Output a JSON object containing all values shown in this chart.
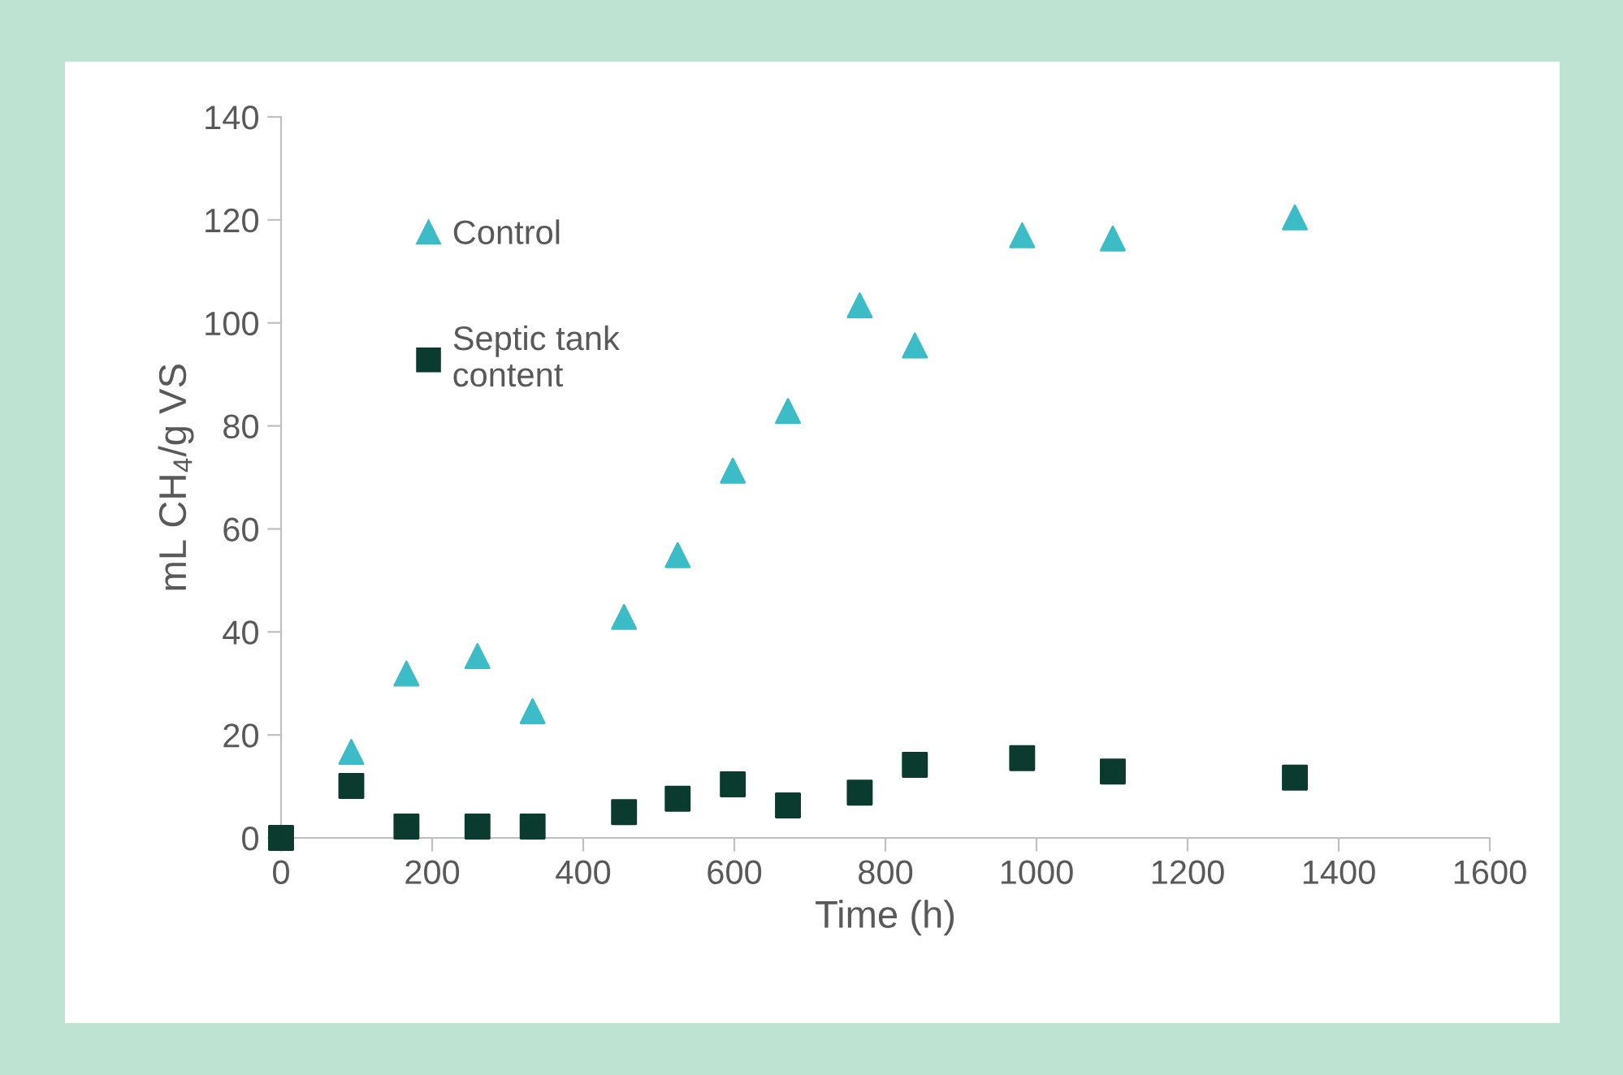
{
  "chart_data": {
    "type": "scatter",
    "xlabel": "Time (h)",
    "ylabel": "mL CH$_{4}$/g VS",
    "xlim": [
      0,
      1600
    ],
    "xticks": [
      0,
      200,
      400,
      600,
      800,
      1000,
      1200,
      1400,
      1600
    ],
    "ylim": [
      0,
      140
    ],
    "yticks": [
      0,
      20,
      40,
      60,
      80,
      100,
      120,
      140
    ],
    "grid": false,
    "legend": "top left",
    "series": [
      {
        "name": "Control",
        "color": "#3cbcc6",
        "marker": "triangle",
        "x": [
          93,
          166,
          260,
          333,
          454,
          525,
          598,
          671,
          766,
          839,
          981,
          1101,
          1342
        ],
        "values": [
          16.7,
          31.9,
          35.3,
          24.6,
          42.9,
          54.9,
          71.3,
          82.9,
          103.4,
          95.6,
          117,
          116.4,
          120.5
        ]
      },
      {
        "name": "Septic tank content",
        "color": "#0b3a2e",
        "marker": "square",
        "x": [
          0,
          93,
          166,
          260,
          333,
          454,
          525,
          598,
          671,
          766,
          839,
          981,
          1101,
          1342
        ],
        "values": [
          0,
          10.1,
          2.2,
          2.2,
          2.2,
          5.0,
          7.6,
          10.4,
          6.3,
          8.8,
          14.2,
          15.5,
          12.9,
          11.7
        ]
      }
    ]
  }
}
